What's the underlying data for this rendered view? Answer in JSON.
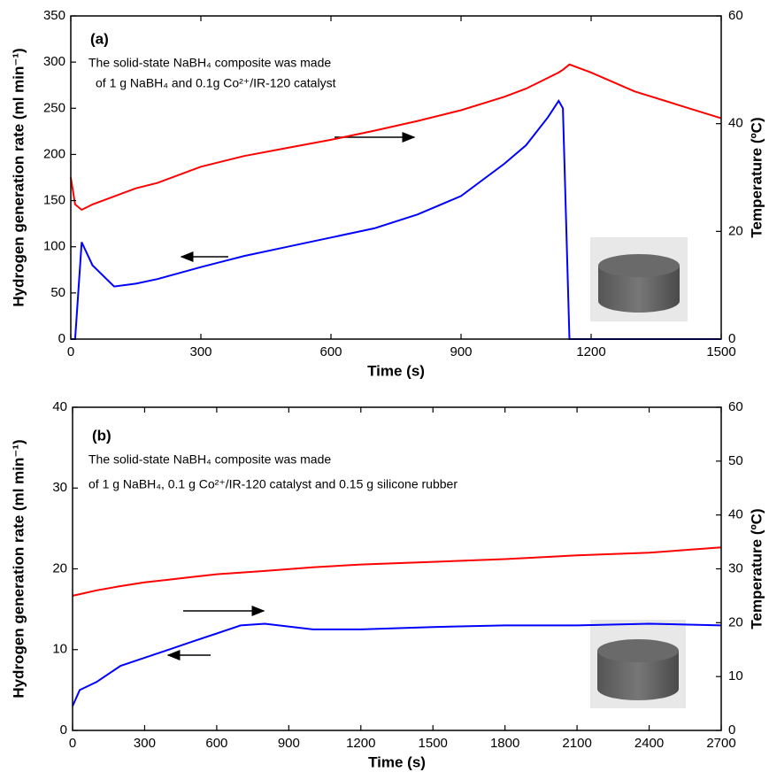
{
  "chart_data": [
    {
      "type": "line",
      "panel_label": "(a)",
      "annotations": [
        "The solid-state NaBH₄ composite  was made",
        "of 1 g NaBH₄ and 0.1g Co²⁺/IR-120 catalyst"
      ],
      "xlabel": "Time (s)",
      "ylabel": "Hydrogen generation rate (ml min⁻¹)",
      "y2label": "Temperature (ºC)",
      "x": [
        0,
        10,
        25,
        50,
        100,
        150,
        200,
        300,
        400,
        500,
        600,
        700,
        800,
        900,
        1000,
        1050,
        1100,
        1125,
        1135,
        1150,
        1200,
        1300,
        1400,
        1500
      ],
      "series": [
        {
          "color": "#0000ff",
          "values": [
            0,
            0,
            105,
            80,
            57,
            60,
            65,
            78,
            90,
            100,
            110,
            120,
            135,
            155,
            190,
            210,
            240,
            258,
            250,
            0,
            0,
            0,
            0,
            0
          ]
        },
        {
          "color": "#ff0000",
          "axis": "y2",
          "values": [
            30,
            25,
            24,
            25,
            26.5,
            28,
            29,
            32,
            34,
            35.5,
            37,
            38.7,
            40.5,
            42.5,
            45,
            46.5,
            48.5,
            49.5,
            50,
            51,
            49.5,
            46,
            43.5,
            41
          ]
        }
      ],
      "xlim": [
        0,
        1500
      ],
      "xticks": [
        0,
        300,
        600,
        900,
        1200,
        1500
      ],
      "ylim": [
        0,
        350
      ],
      "yticks": [
        0,
        50,
        100,
        150,
        200,
        250,
        300,
        350
      ],
      "y2lim": [
        0,
        60
      ],
      "y2ticks": [
        0,
        20,
        40,
        60
      ]
    },
    {
      "type": "line",
      "panel_label": "(b)",
      "annotations": [
        "The solid-state NaBH₄ composite  was made",
        "of 1 g NaBH₄, 0.1 g Co²⁺/IR-120 catalyst and 0.15 g silicone rubber"
      ],
      "xlabel": "Time (s)",
      "ylabel": "Hydrogen generation rate (ml min⁻¹)",
      "y2label": "Temperature (ºC)",
      "x": [
        0,
        30,
        100,
        200,
        300,
        400,
        500,
        600,
        700,
        800,
        1000,
        1200,
        1500,
        1800,
        2100,
        2400,
        2700
      ],
      "series": [
        {
          "color": "#0000ff",
          "values": [
            3,
            5,
            6,
            8,
            9,
            10,
            11,
            12,
            13,
            13.2,
            12.5,
            12.5,
            12.8,
            13,
            13,
            13.2,
            13
          ]
        },
        {
          "color": "#ff0000",
          "axis": "y2",
          "values": [
            25,
            25.3,
            26,
            26.8,
            27.5,
            28,
            28.5,
            29,
            29.3,
            29.6,
            30.3,
            30.8,
            31.3,
            31.8,
            32.5,
            33,
            34
          ]
        }
      ],
      "xlim": [
        0,
        2700
      ],
      "xticks": [
        0,
        300,
        600,
        900,
        1200,
        1500,
        1800,
        2100,
        2400,
        2700
      ],
      "ylim": [
        0,
        40
      ],
      "yticks": [
        0,
        10,
        20,
        30,
        40
      ],
      "y2lim": [
        0,
        60
      ],
      "y2ticks": [
        0,
        10,
        20,
        30,
        40,
        50,
        60
      ]
    }
  ]
}
